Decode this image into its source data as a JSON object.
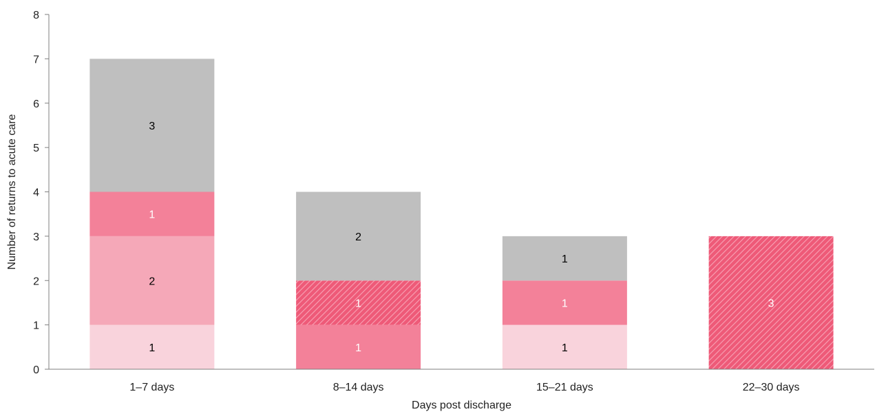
{
  "chart_data": {
    "type": "bar",
    "stacked": true,
    "categories": [
      "1–7 days",
      "8–14 days",
      "15–21 days",
      "22–30 days"
    ],
    "xlabel": "Days post discharge",
    "ylabel": "Number of returns to acute care",
    "ylim": [
      0,
      8
    ],
    "yticks": [
      0,
      1,
      2,
      3,
      4,
      5,
      6,
      7,
      8
    ],
    "grid": false,
    "legend": "none",
    "series": [
      {
        "values": [
          1,
          0,
          1,
          0
        ],
        "color": "#f9d3dc",
        "pattern": "solid",
        "label_color": "#000000"
      },
      {
        "values": [
          2,
          0,
          0,
          0
        ],
        "color": "#f5a8b8",
        "pattern": "solid",
        "label_color": "#000000"
      },
      {
        "values": [
          1,
          1,
          1,
          0
        ],
        "color": "#f38199",
        "pattern": "solid",
        "label_color": "#ffffff"
      },
      {
        "values": [
          0,
          1,
          0,
          3
        ],
        "color": "#ee5a78",
        "pattern": "hatched",
        "label_color": "#ffffff"
      },
      {
        "values": [
          3,
          2,
          1,
          0
        ],
        "color": "#bfbfbf",
        "pattern": "solid",
        "label_color": "#000000"
      }
    ]
  }
}
